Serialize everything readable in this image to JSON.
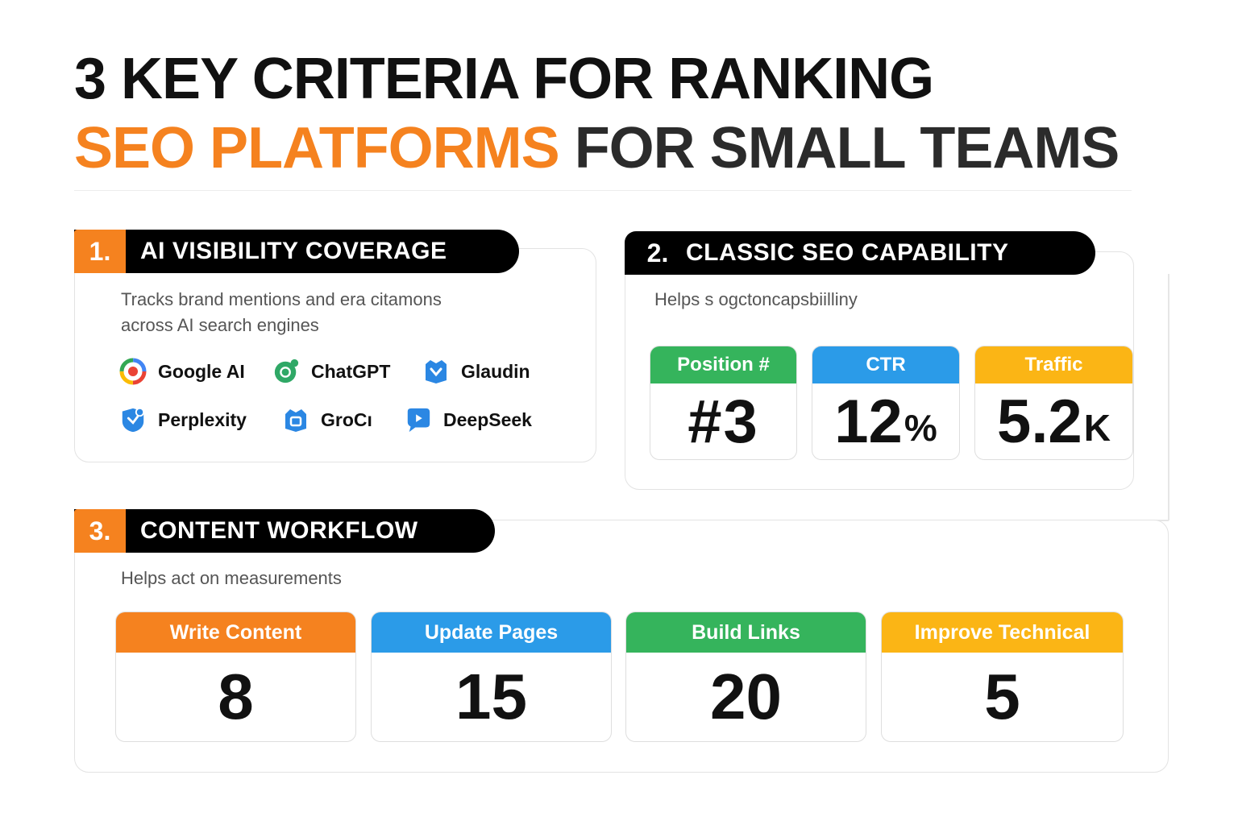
{
  "title": {
    "line1": "3 KEY CRITERIA FOR RANKING",
    "highlight": "SEO PLATFORMS",
    "rest": "FOR SMALL TEAMS"
  },
  "colors": {
    "orange": "#f5821f",
    "green": "#35b45c",
    "blue": "#2b9be8",
    "yellow": "#fbb515",
    "black": "#000000"
  },
  "sections": {
    "ai_visibility": {
      "number": "1.",
      "label": "AI VISIBILITY COVERAGE",
      "description": "Tracks brand mentions and era citamons across AI search engines",
      "engines": [
        {
          "name": "Google AI",
          "icon": "google-ai-icon"
        },
        {
          "name": "ChatGPT",
          "icon": "chatgpt-icon"
        },
        {
          "name": "Glaudin",
          "icon": "claude-icon"
        },
        {
          "name": "Perplexity",
          "icon": "perplexity-icon"
        },
        {
          "name": "GroCı",
          "icon": "grok-icon"
        },
        {
          "name": "DeepSeek",
          "icon": "deepseek-icon"
        }
      ]
    },
    "classic_seo": {
      "number": "2.",
      "label": "CLASSIC SEO CAPABILITY",
      "description": "Helps s ogctoncapsbiilliny",
      "metrics": [
        {
          "label": "Position #",
          "value": "#3",
          "unit": "",
          "color": "#35b45c"
        },
        {
          "label": "CTR",
          "value": "12",
          "unit": "%",
          "color": "#2b9be8"
        },
        {
          "label": "Traffic",
          "value": "5.2",
          "unit": "K",
          "color": "#fbb515"
        }
      ]
    },
    "content_workflow": {
      "number": "3.",
      "label": "CONTENT WORKFLOW",
      "description": "Helps act on measurements",
      "tasks": [
        {
          "label": "Write Content",
          "value": "8",
          "color": "#f5821f"
        },
        {
          "label": "Update Pages",
          "value": "15",
          "color": "#2b9be8"
        },
        {
          "label": "Build Links",
          "value": "20",
          "color": "#35b45c"
        },
        {
          "label": "Improve Technical",
          "value": "5",
          "color": "#fbb515"
        }
      ]
    }
  }
}
